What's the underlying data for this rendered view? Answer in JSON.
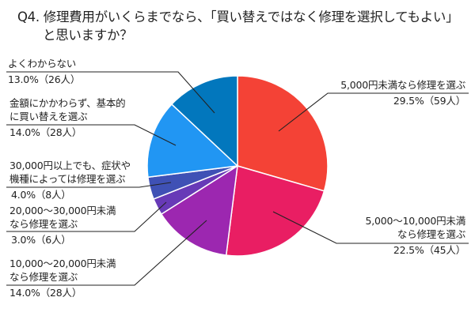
{
  "title": {
    "line1": "Q4. 修理費用がいくらまでなら、「買い替えではなく修理を選択してもよい」",
    "line2": "と思いますか？"
  },
  "chart_data": {
    "type": "pie",
    "title": "Q4. 修理費用がいくらまでなら、「買い替えではなく修理を選択してもよい」と思いますか？",
    "start_angle": "12 o'clock",
    "direction": "clockwise",
    "categories": [
      "5,000円未満なら修理を選ぶ",
      "5,000〜10,000円未満なら修理を選ぶ",
      "10,000〜20,000円未満なら修理を選ぶ",
      "20,000〜30,000円未満なら修理を選ぶ",
      "30,000円以上でも、症状や機種によっては修理を選ぶ",
      "金額にかかわらず、基本的に買い替えを選ぶ",
      "よくわからない"
    ],
    "values": [
      29.5,
      22.5,
      14.0,
      3.0,
      4.0,
      14.0,
      13.0
    ],
    "counts": [
      59,
      45,
      28,
      6,
      8,
      28,
      26
    ],
    "colors": [
      "#f44236",
      "#e91e63",
      "#9c27b0",
      "#673ab7",
      "#3f51b5",
      "#2196f3",
      "#0277bd"
    ],
    "unit": "%"
  },
  "labels": [
    {
      "name1": "5,000円未満なら修理を選ぶ",
      "name2": "",
      "value": "29.5%（59人）"
    },
    {
      "name1": "5,000〜10,000円未満",
      "name2": "なら修理を選ぶ",
      "value": "22.5%（45人）"
    },
    {
      "name1": "10,000〜20,000円未満",
      "name2": "なら修理を選ぶ",
      "value": "14.0%（28人）"
    },
    {
      "name1": "20,000〜30,000円未満",
      "name2": "なら修理を選ぶ",
      "value": "3.0%（6人）"
    },
    {
      "name1": "30,000円以上でも、症状や",
      "name2": "機種によっては修理を選ぶ",
      "value": "4.0%（8人）"
    },
    {
      "name1": "金額にかかわらず、基本的",
      "name2": "に買い替えを選ぶ",
      "value": "14.0%（28人）"
    },
    {
      "name1": "よくわからない",
      "name2": "",
      "value": "13.0%（26人）"
    }
  ]
}
